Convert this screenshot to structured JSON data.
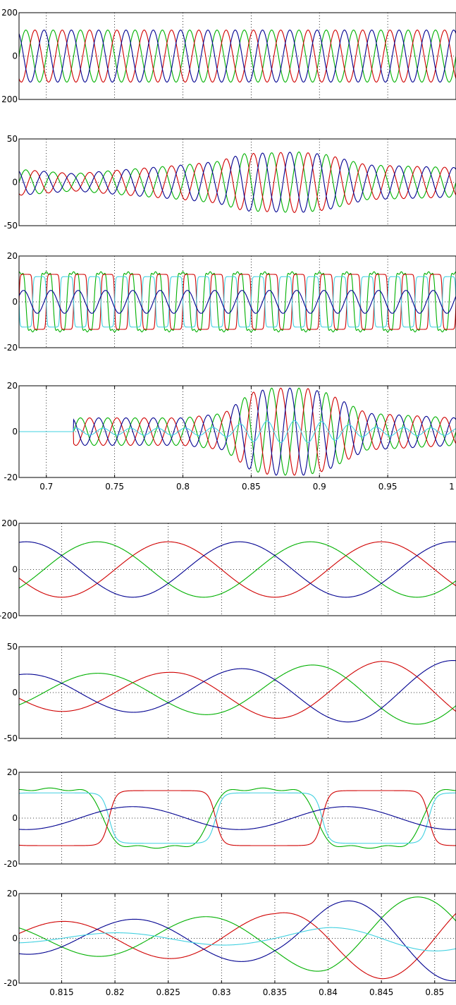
{
  "chart_data": [
    {
      "type": "line",
      "group": "full-view",
      "xlim": [
        0.68,
        1.0
      ],
      "ylim": [
        -200,
        200
      ],
      "yticks": [
        "200",
        "0",
        "200"
      ],
      "grid": true,
      "series": [
        {
          "color": "#00b000",
          "amplitude": 120,
          "frequency_hz": 50,
          "phase_deg": 0,
          "waveform": "sine"
        },
        {
          "color": "#d00000",
          "amplitude": 120,
          "frequency_hz": 50,
          "phase_deg": -120,
          "waveform": "sine"
        },
        {
          "color": "#000090",
          "amplitude": 120,
          "frequency_hz": 50,
          "phase_deg": 120,
          "waveform": "sine"
        }
      ]
    },
    {
      "type": "line",
      "group": "full-view",
      "xlim": [
        0.68,
        1.0
      ],
      "ylim": [
        -50,
        50
      ],
      "yticks": [
        "50",
        "0",
        "-50"
      ],
      "grid": true,
      "envelope": {
        "t": [
          0.68,
          0.72,
          0.8,
          0.825,
          0.845,
          0.885,
          0.905,
          0.935,
          1.0
        ],
        "a": [
          15,
          10,
          20,
          24,
          33,
          35,
          32,
          20,
          17
        ]
      },
      "series": [
        {
          "color": "#00b000",
          "frequency_hz": 50,
          "phase_deg": 0,
          "waveform": "sine"
        },
        {
          "color": "#d00000",
          "frequency_hz": 50,
          "phase_deg": -120,
          "waveform": "sine"
        },
        {
          "color": "#000090",
          "frequency_hz": 50,
          "phase_deg": 120,
          "waveform": "sine"
        }
      ]
    },
    {
      "type": "line",
      "group": "full-view",
      "xlim": [
        0.68,
        1.0
      ],
      "ylim": [
        -20,
        20
      ],
      "yticks": [
        "20",
        "0",
        "-20"
      ],
      "grid": true,
      "series": [
        {
          "color": "#00b000",
          "amplitude": 18,
          "frequency_hz": 50,
          "phase_deg": 90,
          "waveform": "distorted"
        },
        {
          "color": "#d00000",
          "amplitude": 12,
          "frequency_hz": 50,
          "phase_deg": 0,
          "waveform": "square"
        },
        {
          "color": "#40d0e0",
          "amplitude": 11,
          "frequency_hz": 50,
          "phase_deg": 180,
          "waveform": "square"
        },
        {
          "color": "#000090",
          "amplitude": 5,
          "frequency_hz": 50,
          "phase_deg": 30,
          "waveform": "sine"
        }
      ]
    },
    {
      "type": "line",
      "group": "full-view",
      "xlim": [
        0.68,
        1.0
      ],
      "ylim": [
        -20,
        20
      ],
      "yticks": [
        "20",
        "0",
        "-20"
      ],
      "xticks": [
        "0.7",
        "0.75",
        "0.8",
        "0.85",
        "0.9",
        "0.95",
        "1"
      ],
      "grid": true,
      "start_time": 0.72,
      "envelope": {
        "t": [
          0.72,
          0.8,
          0.83,
          0.85,
          0.865,
          0.89,
          0.905,
          0.935,
          1.0
        ],
        "a": [
          6,
          6,
          8,
          17,
          19,
          19,
          17,
          8,
          6
        ]
      },
      "series": [
        {
          "color": "#00b000",
          "frequency_hz": 50,
          "phase_deg": 0,
          "waveform": "sine"
        },
        {
          "color": "#d00000",
          "frequency_hz": 50,
          "phase_deg": -120,
          "waveform": "sine"
        },
        {
          "color": "#000090",
          "frequency_hz": 50,
          "phase_deg": 120,
          "waveform": "sine"
        },
        {
          "color": "#40d0e0",
          "frequency_hz": 50,
          "phase_deg": 60,
          "waveform": "sine",
          "amplitude_scale": 0.25
        }
      ]
    },
    {
      "type": "line",
      "group": "zoom-view",
      "xlim": [
        0.811,
        0.852
      ],
      "ylim": [
        -200,
        200
      ],
      "yticks": [
        "200",
        "0",
        "-200"
      ],
      "grid": true,
      "series": [
        {
          "color": "#d00000",
          "amplitude": 120,
          "frequency_hz": 50,
          "phase_deg": 0,
          "waveform": "sine"
        },
        {
          "color": "#00b000",
          "amplitude": 120,
          "frequency_hz": 50,
          "phase_deg": 120,
          "waveform": "sine"
        },
        {
          "color": "#000090",
          "amplitude": 120,
          "frequency_hz": 50,
          "phase_deg": 240,
          "waveform": "sine"
        }
      ]
    },
    {
      "type": "line",
      "group": "zoom-view",
      "xlim": [
        0.811,
        0.852
      ],
      "ylim": [
        -50,
        50
      ],
      "yticks": [
        "50",
        "0",
        "-50"
      ],
      "grid": true,
      "envelope": {
        "t": [
          0.811,
          0.825,
          0.835,
          0.845,
          0.852
        ],
        "a": [
          20,
          22,
          28,
          34,
          35
        ]
      },
      "series": [
        {
          "color": "#d00000",
          "frequency_hz": 50,
          "phase_deg": 0,
          "waveform": "sine"
        },
        {
          "color": "#00b000",
          "frequency_hz": 50,
          "phase_deg": 120,
          "waveform": "sine"
        },
        {
          "color": "#000090",
          "frequency_hz": 50,
          "phase_deg": 240,
          "waveform": "sine"
        }
      ]
    },
    {
      "type": "line",
      "group": "zoom-view",
      "xlim": [
        0.811,
        0.852
      ],
      "ylim": [
        -20,
        20
      ],
      "yticks": [
        "20",
        "0",
        "-20"
      ],
      "grid": true,
      "series": [
        {
          "color": "#00b000",
          "amplitude": 18,
          "frequency_hz": 50,
          "phase_deg": 200,
          "waveform": "distorted"
        },
        {
          "color": "#d00000",
          "amplitude": 12,
          "frequency_hz": 50,
          "phase_deg": 10,
          "waveform": "square"
        },
        {
          "color": "#40d0e0",
          "amplitude": 11,
          "frequency_hz": 50,
          "phase_deg": 190,
          "waveform": "square"
        },
        {
          "color": "#000090",
          "amplitude": 5,
          "frequency_hz": 50,
          "phase_deg": 60,
          "waveform": "sine"
        }
      ]
    },
    {
      "type": "line",
      "group": "zoom-view",
      "xlim": [
        0.811,
        0.852
      ],
      "ylim": [
        -20,
        20
      ],
      "yticks": [
        "20",
        "0",
        "-20"
      ],
      "xticks": [
        "0.815",
        "0.82",
        "0.825",
        "0.83",
        "0.835",
        "0.84",
        "0.845",
        "0.85"
      ],
      "grid": true,
      "envelope": {
        "t": [
          0.811,
          0.825,
          0.835,
          0.84,
          0.845,
          0.852
        ],
        "a": [
          7,
          9,
          11,
          16,
          18,
          19
        ]
      },
      "series": [
        {
          "color": "#d00000",
          "frequency_hz": 50,
          "phase_deg": 180,
          "waveform": "sine"
        },
        {
          "color": "#00b000",
          "frequency_hz": 50,
          "phase_deg": 300,
          "waveform": "sine"
        },
        {
          "color": "#000090",
          "frequency_hz": 50,
          "phase_deg": 60,
          "waveform": "sine"
        },
        {
          "color": "#40d0e0",
          "frequency_hz": 50,
          "phase_deg": 90,
          "waveform": "sine",
          "amplitude_scale": 0.3
        }
      ]
    }
  ]
}
